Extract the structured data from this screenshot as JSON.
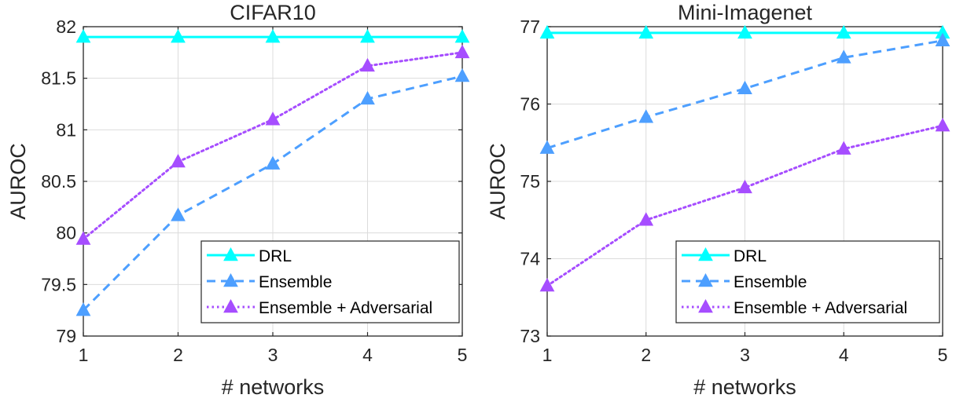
{
  "chart_data": [
    {
      "type": "line",
      "title": "CIFAR10",
      "xlabel": "# networks",
      "ylabel": "AUROC",
      "x": [
        1,
        2,
        3,
        4,
        5
      ],
      "xlim": [
        1,
        5
      ],
      "ylim": [
        79,
        82
      ],
      "xticks": [
        "1",
        "2",
        "3",
        "4",
        "5"
      ],
      "yticks": [
        "79",
        "79.5",
        "80",
        "80.5",
        "81",
        "81.5",
        "82"
      ],
      "ytick_values": [
        79,
        79.5,
        80,
        80.5,
        81,
        81.5,
        82
      ],
      "grid": true,
      "legend_position": "bottom-right",
      "series": [
        {
          "name": "DRL",
          "values": [
            81.9,
            81.9,
            81.9,
            81.9,
            81.9
          ],
          "color": "#00ffff",
          "style": "solid",
          "marker": "triangle"
        },
        {
          "name": "Ensemble",
          "values": [
            79.25,
            80.17,
            80.67,
            81.3,
            81.52
          ],
          "color": "#4d9fff",
          "style": "dashed",
          "marker": "triangle"
        },
        {
          "name": "Ensemble + Adversarial",
          "values": [
            79.94,
            80.69,
            81.1,
            81.62,
            81.75
          ],
          "color": "#a64dff",
          "style": "dotted",
          "marker": "triangle"
        }
      ]
    },
    {
      "type": "line",
      "title": "Mini-Imagenet",
      "xlabel": "# networks",
      "ylabel": "AUROC",
      "x": [
        1,
        2,
        3,
        4,
        5
      ],
      "xlim": [
        1,
        5
      ],
      "ylim": [
        73,
        77
      ],
      "xticks": [
        "1",
        "2",
        "3",
        "4",
        "5"
      ],
      "yticks": [
        "73",
        "74",
        "75",
        "76",
        "77"
      ],
      "ytick_values": [
        73,
        74,
        75,
        76,
        77
      ],
      "grid": true,
      "legend_position": "bottom-right",
      "series": [
        {
          "name": "DRL",
          "values": [
            76.92,
            76.92,
            76.92,
            76.92,
            76.92
          ],
          "color": "#00ffff",
          "style": "solid",
          "marker": "triangle"
        },
        {
          "name": "Ensemble",
          "values": [
            75.43,
            75.83,
            76.2,
            76.6,
            76.82
          ],
          "color": "#4d9fff",
          "style": "dashed",
          "marker": "triangle"
        },
        {
          "name": "Ensemble + Adversarial",
          "values": [
            73.65,
            74.5,
            74.92,
            75.42,
            75.72
          ],
          "color": "#a64dff",
          "style": "dotted",
          "marker": "triangle"
        }
      ]
    }
  ]
}
